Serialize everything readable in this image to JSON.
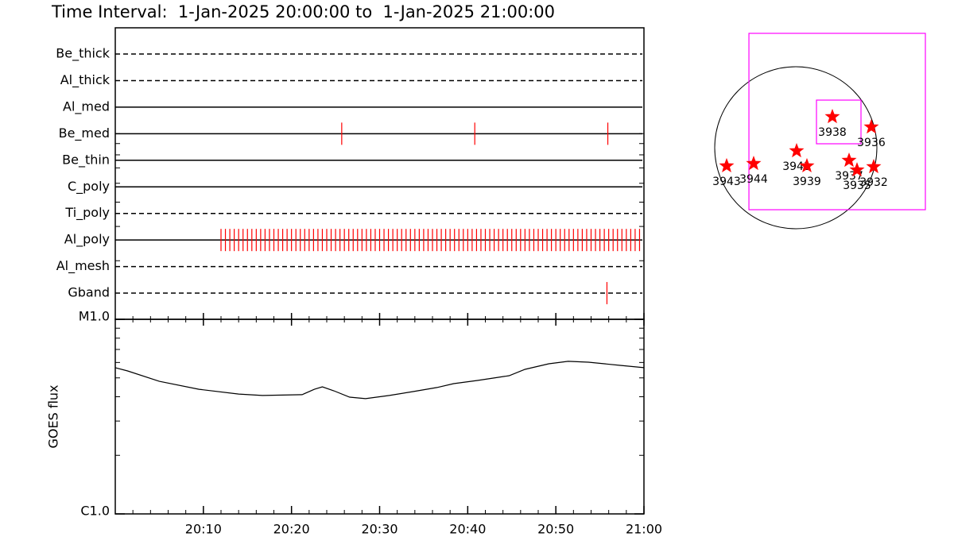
{
  "title": "Time Interval:  1-Jan-2025 20:00:00 to  1-Jan-2025 21:00:00",
  "chart_data": [
    {
      "type": "timeline",
      "xlim": [
        0,
        60
      ],
      "event_color": "#ff0000",
      "rows": [
        {
          "name": "Be_thick",
          "style": "dashed",
          "events": []
        },
        {
          "name": "Al_thick",
          "style": "dashed",
          "events": []
        },
        {
          "name": "Al_med",
          "style": "solid",
          "events": []
        },
        {
          "name": "Be_med",
          "style": "solid",
          "events": [
            25.7,
            40.8,
            55.9
          ]
        },
        {
          "name": "Be_thin",
          "style": "solid",
          "events": []
        },
        {
          "name": "C_poly",
          "style": "solid",
          "events": []
        },
        {
          "name": "Ti_poly",
          "style": "dashed",
          "events": []
        },
        {
          "name": "Al_poly",
          "style": "solid",
          "events": [
            12,
            12.5,
            13,
            13.5,
            14,
            14.5,
            15,
            15.5,
            16,
            16.5,
            17,
            17.5,
            18,
            18.5,
            19,
            19.5,
            20,
            20.5,
            21,
            21.5,
            22,
            22.5,
            23,
            23.5,
            24,
            24.5,
            25,
            25.5,
            26,
            26.5,
            27,
            27.5,
            28,
            28.5,
            29,
            29.5,
            30,
            30.5,
            31,
            31.5,
            32,
            32.5,
            33,
            33.5,
            34,
            34.5,
            35,
            35.5,
            36,
            36.5,
            37,
            37.5,
            38,
            38.5,
            39,
            39.5,
            40,
            40.5,
            41,
            41.5,
            42,
            42.5,
            43,
            43.5,
            44,
            44.5,
            45,
            45.5,
            46,
            46.5,
            47,
            47.5,
            48,
            48.5,
            49,
            49.5,
            50,
            50.5,
            51,
            51.5,
            52,
            52.5,
            53,
            53.5,
            54,
            54.5,
            55,
            55.5,
            56,
            56.5,
            57,
            57.5,
            58,
            58.5,
            59,
            59.5
          ]
        },
        {
          "name": "Al_mesh",
          "style": "dashed",
          "events": []
        },
        {
          "name": "Gband",
          "style": "dashed",
          "events": [
            55.8
          ]
        }
      ]
    },
    {
      "type": "line",
      "ylabel": "GOES flux",
      "log": true,
      "color": "#000000",
      "xlim": [
        0,
        60
      ],
      "xticks": [
        {
          "value": 10,
          "label": "20:10"
        },
        {
          "value": 20,
          "label": "20:20"
        },
        {
          "value": 30,
          "label": "20:30"
        },
        {
          "value": 40,
          "label": "20:40"
        },
        {
          "value": 50,
          "label": "20:50"
        },
        {
          "value": 60,
          "label": "21:00"
        }
      ],
      "ylim": [
        1e-06,
        1e-05
      ],
      "yticks": [
        {
          "value": 1e-06,
          "label": "C1.0"
        },
        {
          "value": 1e-05,
          "label": "M1.0"
        }
      ],
      "x": [
        0,
        1.4,
        5,
        9.5,
        14,
        16.7,
        21.2,
        22.6,
        23.5,
        24.8,
        26.6,
        28.4,
        31.1,
        33.8,
        36.5,
        38.4,
        41.1,
        42.9,
        44.7,
        46.5,
        49.2,
        51.4,
        53.7,
        57.3,
        60
      ],
      "values": [
        5.64e-06,
        5.43e-06,
        4.8e-06,
        4.37e-06,
        4.13e-06,
        4.06e-06,
        4.1e-06,
        4.37e-06,
        4.5e-06,
        4.29e-06,
        3.98e-06,
        3.91e-06,
        4.06e-06,
        4.25e-06,
        4.46e-06,
        4.67e-06,
        4.85e-06,
        4.99e-06,
        5.13e-06,
        5.53e-06,
        5.91e-06,
        6.08e-06,
        6.02e-06,
        5.8e-06,
        5.64e-06
      ]
    },
    {
      "type": "scatter",
      "xlim": [
        -1,
        1
      ],
      "ylim": [
        -1,
        1
      ],
      "limb_radius": 1,
      "color": "#ff0000",
      "box_color": "#ff00ff",
      "labels": [
        "3943",
        "3944",
        "3941",
        "3939",
        "3938",
        "3936",
        "3937",
        "3935",
        "3932"
      ],
      "x": [
        -0.853,
        -0.52,
        0.01,
        0.137,
        0.451,
        0.931,
        0.657,
        0.755,
        0.961
      ],
      "values": [
        -0.225,
        -0.196,
        -0.039,
        -0.225,
        0.382,
        0.255,
        -0.157,
        -0.275,
        -0.235
      ],
      "boxes": [
        [
          -0.578,
          -0.765,
          1.598,
          1.412
        ],
        [
          0.255,
          0.049,
          0.804,
          0.588
        ]
      ]
    }
  ]
}
